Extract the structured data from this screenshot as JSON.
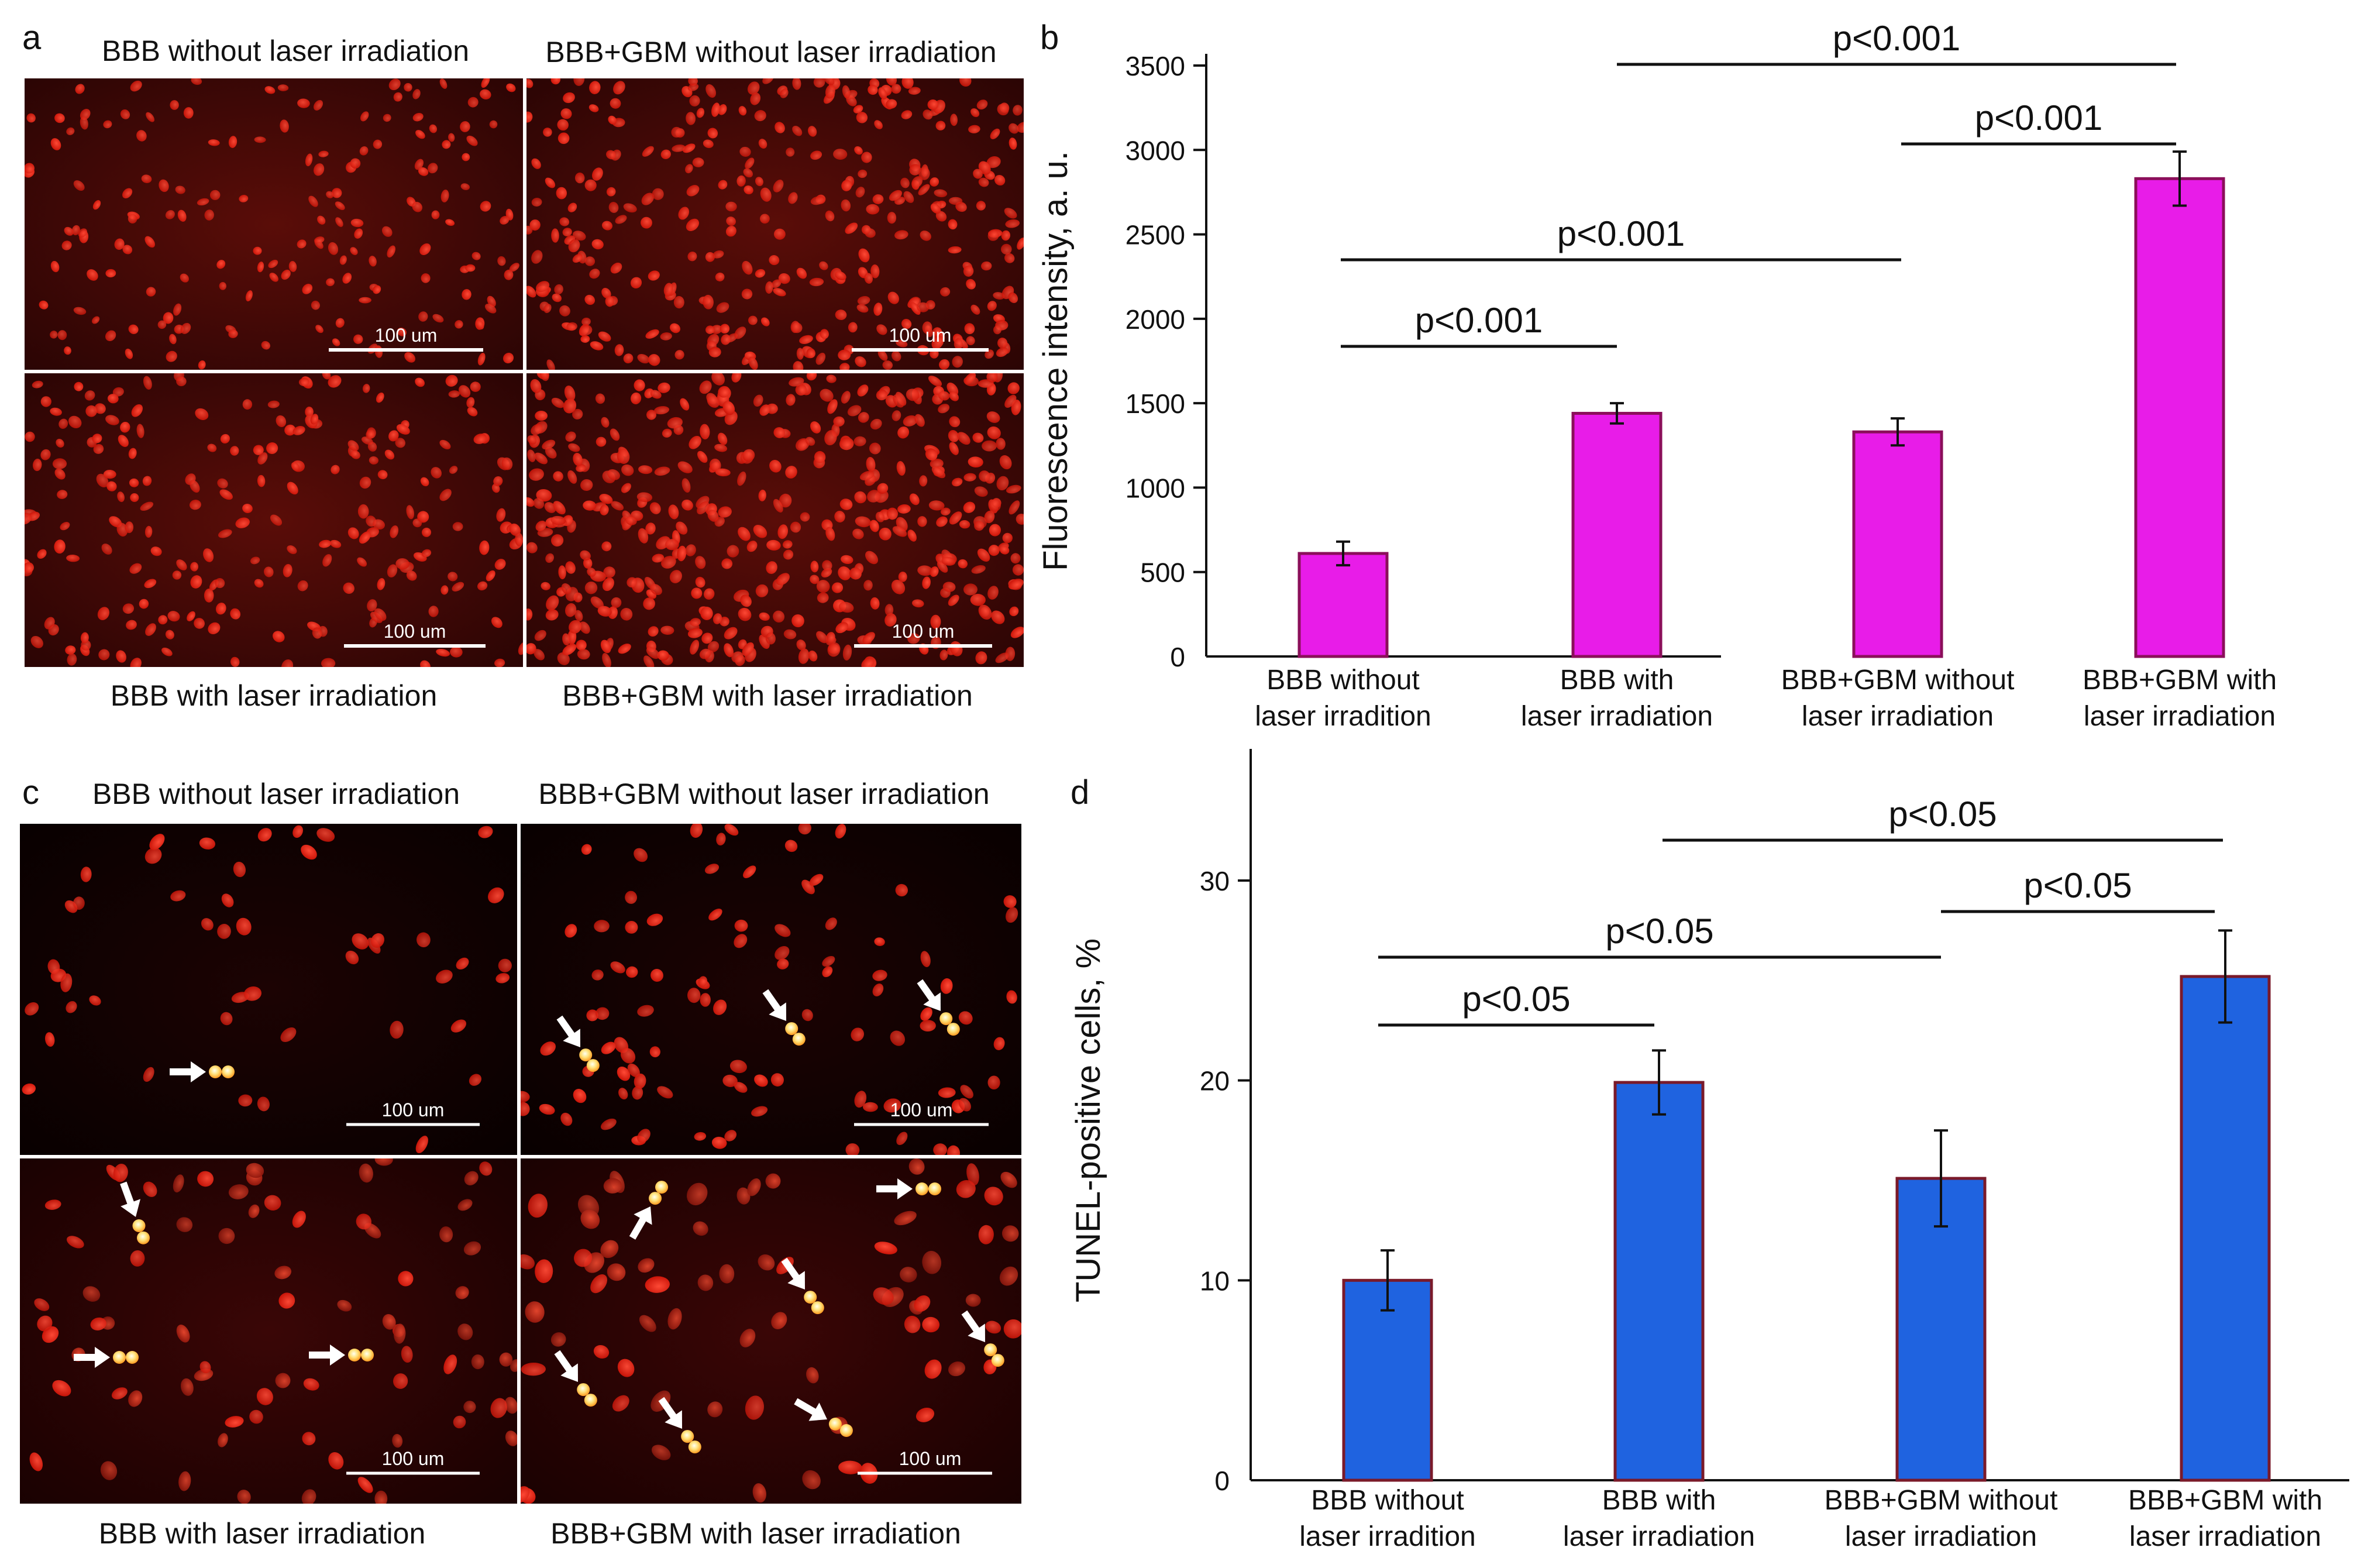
{
  "panel_letters": {
    "a": "a",
    "b": "b",
    "c": "c",
    "d": "d"
  },
  "panel_a": {
    "titles": {
      "top_left": "BBB without laser irradiation",
      "top_right": "BBB+GBM without laser irradiation",
      "bottom_left": "BBB with laser irradiation",
      "bottom_right": "BBB+GBM with laser irradiation"
    },
    "scale_bar": "100 um"
  },
  "panel_c": {
    "titles": {
      "top_left": "BBB without laser irradiation",
      "top_right": "BBB+GBM without laser irradiation",
      "bottom_left": "BBB with laser irradiation",
      "bottom_right": "BBB+GBM with laser irradiation"
    },
    "scale_bar": "100 um"
  },
  "chart_data": [
    {
      "panel": "b",
      "type": "bar",
      "categories": [
        [
          "BBB without",
          "laser irradition"
        ],
        [
          "BBB with",
          "laser irradiation"
        ],
        [
          "BBB+GBM without",
          "laser irradiation"
        ],
        [
          "BBB+GBM with",
          "laser irradiation"
        ]
      ],
      "values": [
        610,
        1440,
        1330,
        2830
      ],
      "errors": [
        70,
        60,
        80,
        160
      ],
      "ylabel": "Fluorescence intensity, a. u.",
      "ylim": [
        0,
        3500
      ],
      "yticks": [
        0,
        500,
        1000,
        1500,
        2000,
        2500,
        3000,
        3500
      ],
      "bar_color": "#e81ce8",
      "bar_edge": "#8b0f5a",
      "significance": [
        {
          "from": 0,
          "to": 1,
          "label": "p<0.001"
        },
        {
          "from": 0,
          "to": 2,
          "label": "p<0.001"
        },
        {
          "from": 2,
          "to": 3,
          "label": "p<0.001"
        },
        {
          "from": 1,
          "to": 3,
          "label": "p<0.001"
        }
      ]
    },
    {
      "panel": "d",
      "type": "bar",
      "categories": [
        [
          "BBB without",
          "laser irradition"
        ],
        [
          "BBB with",
          "laser irradiation"
        ],
        [
          "BBB+GBM without",
          "laser irradiation"
        ],
        [
          "BBB+GBM with",
          "laser irradiation"
        ]
      ],
      "values": [
        10,
        19.9,
        15.1,
        25.2
      ],
      "errors": [
        1.5,
        1.6,
        2.4,
        2.3
      ],
      "ylabel": "TUNEL-positive cells, %",
      "ylim": [
        0,
        36
      ],
      "yticks": [
        0,
        10,
        20,
        30
      ],
      "bar_color": "#1f63e0",
      "bar_edge": "#7a1a2a",
      "significance": [
        {
          "from": 0,
          "to": 1,
          "label": "p<0.05"
        },
        {
          "from": 0,
          "to": 2,
          "label": "p<0.05"
        },
        {
          "from": 2,
          "to": 3,
          "label": "p<0.05"
        },
        {
          "from": 1,
          "to": 3,
          "label": "p<0.05"
        }
      ]
    }
  ]
}
